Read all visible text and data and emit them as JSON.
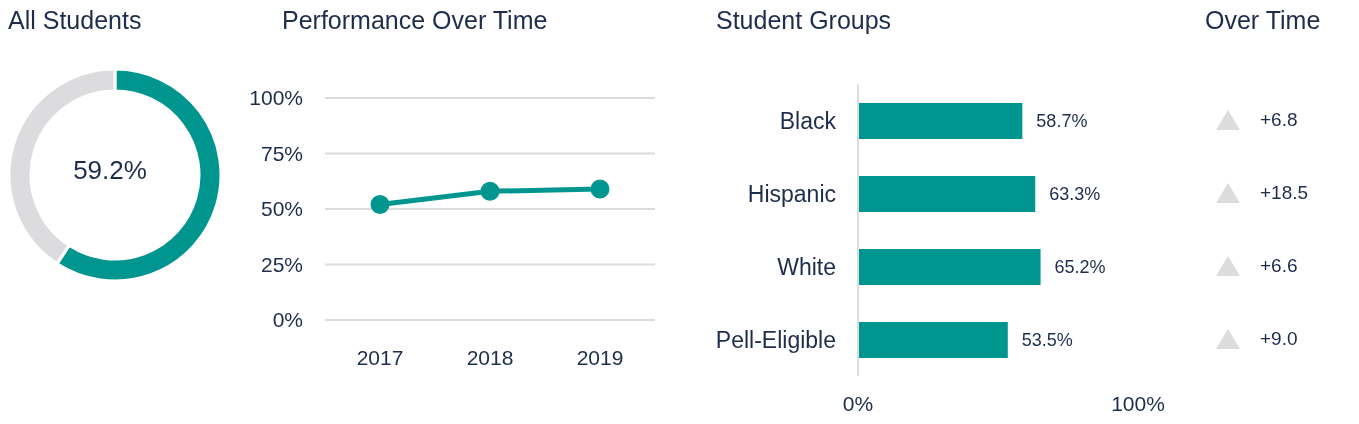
{
  "chart_data": [
    {
      "type": "donut",
      "title": "All Students",
      "categories": [
        null,
        null
      ],
      "values": [
        59.2,
        40.8
      ],
      "colors": [
        "#00968f",
        "#dcdcdf"
      ],
      "annotations": [
        "59.2%"
      ]
    },
    {
      "type": "line",
      "title": "Performance Over Time",
      "categories": [
        "2017",
        "2018",
        "2019"
      ],
      "series": [
        {
          "color": "#00968f",
          "values": [
            52,
            58,
            59
          ]
        }
      ],
      "ylim": [
        0,
        100
      ],
      "yticks": [
        {
          "value": 0,
          "label": "0%"
        },
        {
          "value": 25,
          "label": "25%"
        },
        {
          "value": 50,
          "label": "50%"
        },
        {
          "value": 75,
          "label": "75%"
        },
        {
          "value": 100,
          "label": "100%"
        }
      ],
      "grid": "y",
      "marker": "circle"
    },
    {
      "type": "bar",
      "title": "Student Groups",
      "orientation": "horizontal",
      "categories": [
        "Black",
        "Hispanic",
        "White",
        "Pell-Eligible"
      ],
      "values": [
        58.7,
        63.3,
        65.2,
        53.5
      ],
      "color": "#00968f",
      "value_labels": [
        "58.7%",
        "63.3%",
        "65.2%",
        "53.5%"
      ],
      "xlim": [
        0,
        100
      ],
      "xticks": [
        {
          "value": 0,
          "label": "0%"
        },
        {
          "value": 100,
          "label": "100%"
        }
      ]
    },
    {
      "type": "other",
      "title": "Over Time",
      "annotations": [
        "+6.8",
        "+18.5",
        "+6.6",
        "+9.0"
      ]
    }
  ]
}
